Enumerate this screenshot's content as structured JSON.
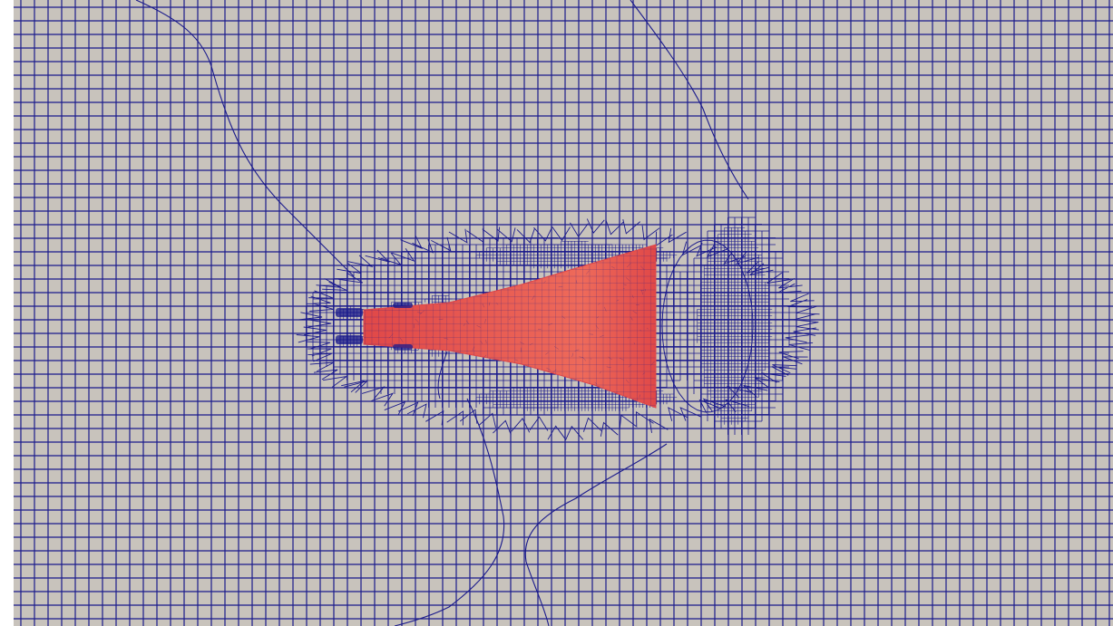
{
  "view": {
    "kind": "mesh-visualization",
    "background_color": "#c8c3bc",
    "mesh_line_color": "#1a1a8c",
    "body_color": "#e04848",
    "body_highlight_color": "#ee6a5a",
    "refinement_levels": 3
  }
}
